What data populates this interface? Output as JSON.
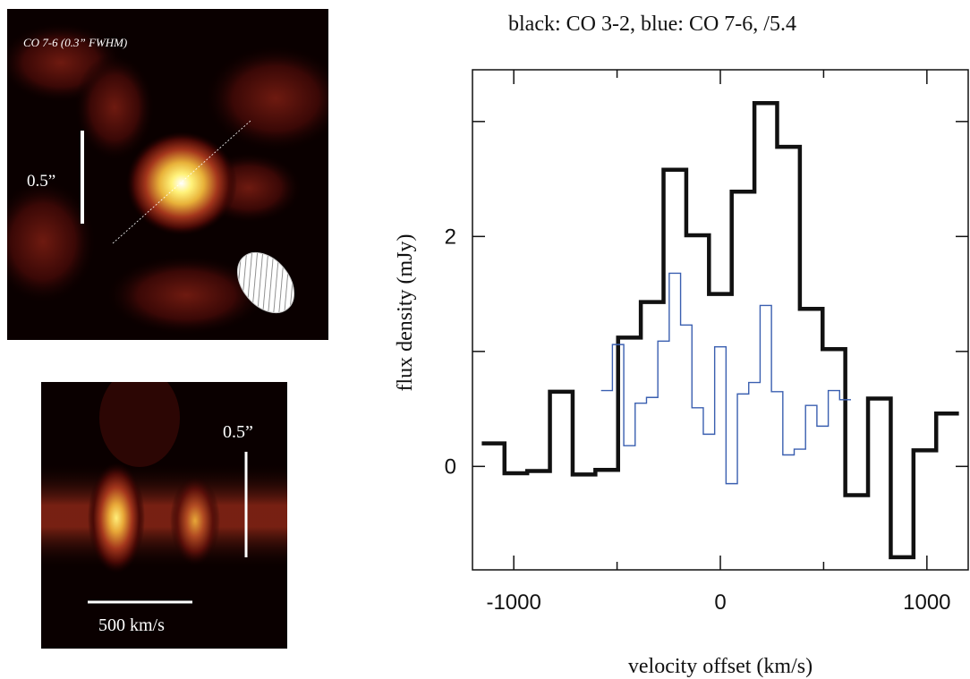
{
  "figure": {
    "top_map": {
      "label": "CO 7-6 (0.3” FWHM)",
      "scale_label": "0.5”"
    },
    "bottom_map": {
      "scale_label": "0.5”",
      "velocity_label": "500 km/s"
    }
  },
  "colors": {
    "series_co32": "#111111",
    "series_co76": "#3a5fb0",
    "map_background": "#0a0000",
    "map_peak": "#ffffff"
  },
  "chart_data": {
    "type": "line",
    "title": "black: CO 3-2, blue: CO 7-6,  /5.4",
    "xlabel": "velocity offset (km/s)",
    "ylabel": "flux density (mJy)",
    "xlim": [
      -1200,
      1200
    ],
    "ylim": [
      -0.9,
      3.45
    ],
    "x_ticks": [
      -1000,
      0,
      1000
    ],
    "y_ticks": [
      0,
      2
    ],
    "drawstyle": "steps-mid",
    "grid": false,
    "series": [
      {
        "name": "CO 3-2",
        "color": "#111111",
        "x": [
          -1100,
          -990,
          -880,
          -770,
          -660,
          -550,
          -440,
          -330,
          -220,
          -110,
          0,
          110,
          220,
          330,
          440,
          550,
          660,
          770,
          880,
          990,
          1100
        ],
        "y": [
          0.2,
          -0.06,
          -0.04,
          0.65,
          -0.07,
          -0.03,
          1.12,
          1.43,
          2.58,
          2.01,
          1.5,
          2.39,
          3.16,
          2.78,
          1.37,
          1.02,
          -0.25,
          0.59,
          -0.79,
          0.14,
          0.46
        ]
      },
      {
        "name": "CO 7-6",
        "color": "#3a5fb0",
        "x": [
          -550,
          -495,
          -440,
          -385,
          -330,
          -275,
          -220,
          -165,
          -110,
          -55,
          0,
          55,
          110,
          165,
          220,
          275,
          330,
          385,
          440,
          495,
          550,
          605
        ],
        "y": [
          0.66,
          1.06,
          0.18,
          0.55,
          0.6,
          1.09,
          1.68,
          1.23,
          0.51,
          0.28,
          1.04,
          -0.15,
          0.63,
          0.73,
          1.4,
          0.65,
          0.1,
          0.15,
          0.53,
          0.35,
          0.66,
          0.58
        ]
      }
    ]
  }
}
